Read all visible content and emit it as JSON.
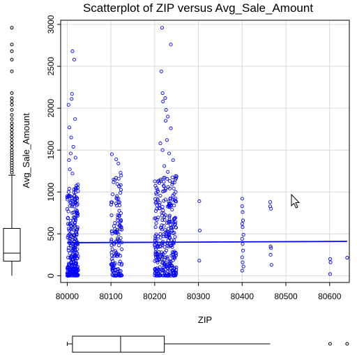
{
  "chart_data": {
    "type": "scatter",
    "title": "Scatterplot of ZIP versus Avg_Sale_Amount",
    "xlabel": "ZIP",
    "ylabel": "Avg_Sale_Amount",
    "xlim": [
      79985,
      80645
    ],
    "ylim": [
      -80,
      3050
    ],
    "x_ticks": [
      80000,
      80100,
      80200,
      80300,
      80400,
      80500,
      80600
    ],
    "y_ticks": [
      0,
      500,
      1000,
      1500,
      2000,
      2500,
      3000
    ],
    "grid": true,
    "series": [
      {
        "color": "#0000ff",
        "marker": "open-circle",
        "clusters": [
          {
            "x_min": 80000,
            "x_max": 80025,
            "y_max": 1100,
            "count": 260
          },
          {
            "x_min": 80100,
            "x_max": 80125,
            "y_max": 1200,
            "count": 130
          },
          {
            "x_min": 80200,
            "x_max": 80250,
            "y_max": 1200,
            "count": 320
          }
        ],
        "points": [
          {
            "x": 80005,
            "y": 1770
          },
          {
            "x": 80003,
            "y": 2040
          },
          {
            "x": 80010,
            "y": 2110
          },
          {
            "x": 80011,
            "y": 2170
          },
          {
            "x": 80012,
            "y": 2680
          },
          {
            "x": 80016,
            "y": 2580
          },
          {
            "x": 80008,
            "y": 1460
          },
          {
            "x": 80006,
            "y": 1270
          },
          {
            "x": 80014,
            "y": 1540
          },
          {
            "x": 80018,
            "y": 1870
          },
          {
            "x": 80004,
            "y": 1380
          },
          {
            "x": 80009,
            "y": 1650
          },
          {
            "x": 80019,
            "y": 1410
          },
          {
            "x": 80012,
            "y": 1220
          },
          {
            "x": 80102,
            "y": 1450
          },
          {
            "x": 80112,
            "y": 1390
          },
          {
            "x": 80117,
            "y": 1340
          },
          {
            "x": 80106,
            "y": 1150
          },
          {
            "x": 80122,
            "y": 1230
          },
          {
            "x": 80217,
            "y": 2960
          },
          {
            "x": 80215,
            "y": 2440
          },
          {
            "x": 80237,
            "y": 2760
          },
          {
            "x": 80218,
            "y": 2180
          },
          {
            "x": 80219,
            "y": 2080
          },
          {
            "x": 80224,
            "y": 2120
          },
          {
            "x": 80230,
            "y": 1900
          },
          {
            "x": 80226,
            "y": 1980
          },
          {
            "x": 80237,
            "y": 1760
          },
          {
            "x": 80213,
            "y": 1580
          },
          {
            "x": 80218,
            "y": 1500
          },
          {
            "x": 80225,
            "y": 1850
          },
          {
            "x": 80228,
            "y": 1620
          },
          {
            "x": 80233,
            "y": 1460
          },
          {
            "x": 80242,
            "y": 1380
          },
          {
            "x": 80222,
            "y": 1310
          },
          {
            "x": 80230,
            "y": 1240
          },
          {
            "x": 80248,
            "y": 1190
          },
          {
            "x": 80302,
            "y": 890
          },
          {
            "x": 80303,
            "y": 540
          },
          {
            "x": 80302,
            "y": 180
          },
          {
            "x": 80400,
            "y": 920
          },
          {
            "x": 80400,
            "y": 830
          },
          {
            "x": 80401,
            "y": 760
          },
          {
            "x": 80402,
            "y": 660
          },
          {
            "x": 80400,
            "y": 620
          },
          {
            "x": 80401,
            "y": 580
          },
          {
            "x": 80403,
            "y": 490
          },
          {
            "x": 80400,
            "y": 440
          },
          {
            "x": 80401,
            "y": 380
          },
          {
            "x": 80402,
            "y": 300
          },
          {
            "x": 80400,
            "y": 220
          },
          {
            "x": 80401,
            "y": 160
          },
          {
            "x": 80403,
            "y": 110
          },
          {
            "x": 80400,
            "y": 60
          },
          {
            "x": 80464,
            "y": 880
          },
          {
            "x": 80464,
            "y": 830
          },
          {
            "x": 80466,
            "y": 800
          },
          {
            "x": 80465,
            "y": 350
          },
          {
            "x": 80466,
            "y": 330
          },
          {
            "x": 80465,
            "y": 250
          },
          {
            "x": 80467,
            "y": 130
          },
          {
            "x": 80601,
            "y": 200
          },
          {
            "x": 80602,
            "y": 160
          },
          {
            "x": 80601,
            "y": 20
          },
          {
            "x": 80640,
            "y": 215
          }
        ]
      }
    ],
    "trend_line": {
      "color": "#0000ff",
      "x": [
        80000,
        80640
      ],
      "y": [
        395,
        410
      ]
    },
    "marginal_boxplots": {
      "y_axis": {
        "min": 0,
        "q1": 175,
        "median": 270,
        "q3": 565,
        "whisker_high": 1200,
        "outliers": [
          1230,
          1260,
          1290,
          1320,
          1350,
          1380,
          1410,
          1440,
          1470,
          1500,
          1540,
          1580,
          1620,
          1660,
          1700,
          1740,
          1780,
          1820,
          1870,
          1920,
          1980,
          2040,
          2080,
          2120,
          2180,
          2440,
          2580,
          2680,
          2760,
          2960
        ]
      },
      "x_axis": {
        "min": 80000,
        "q1": 80012,
        "median": 80122,
        "q3": 80222,
        "whisker_high": 80464,
        "outliers": [
          80601,
          80640
        ]
      }
    }
  }
}
